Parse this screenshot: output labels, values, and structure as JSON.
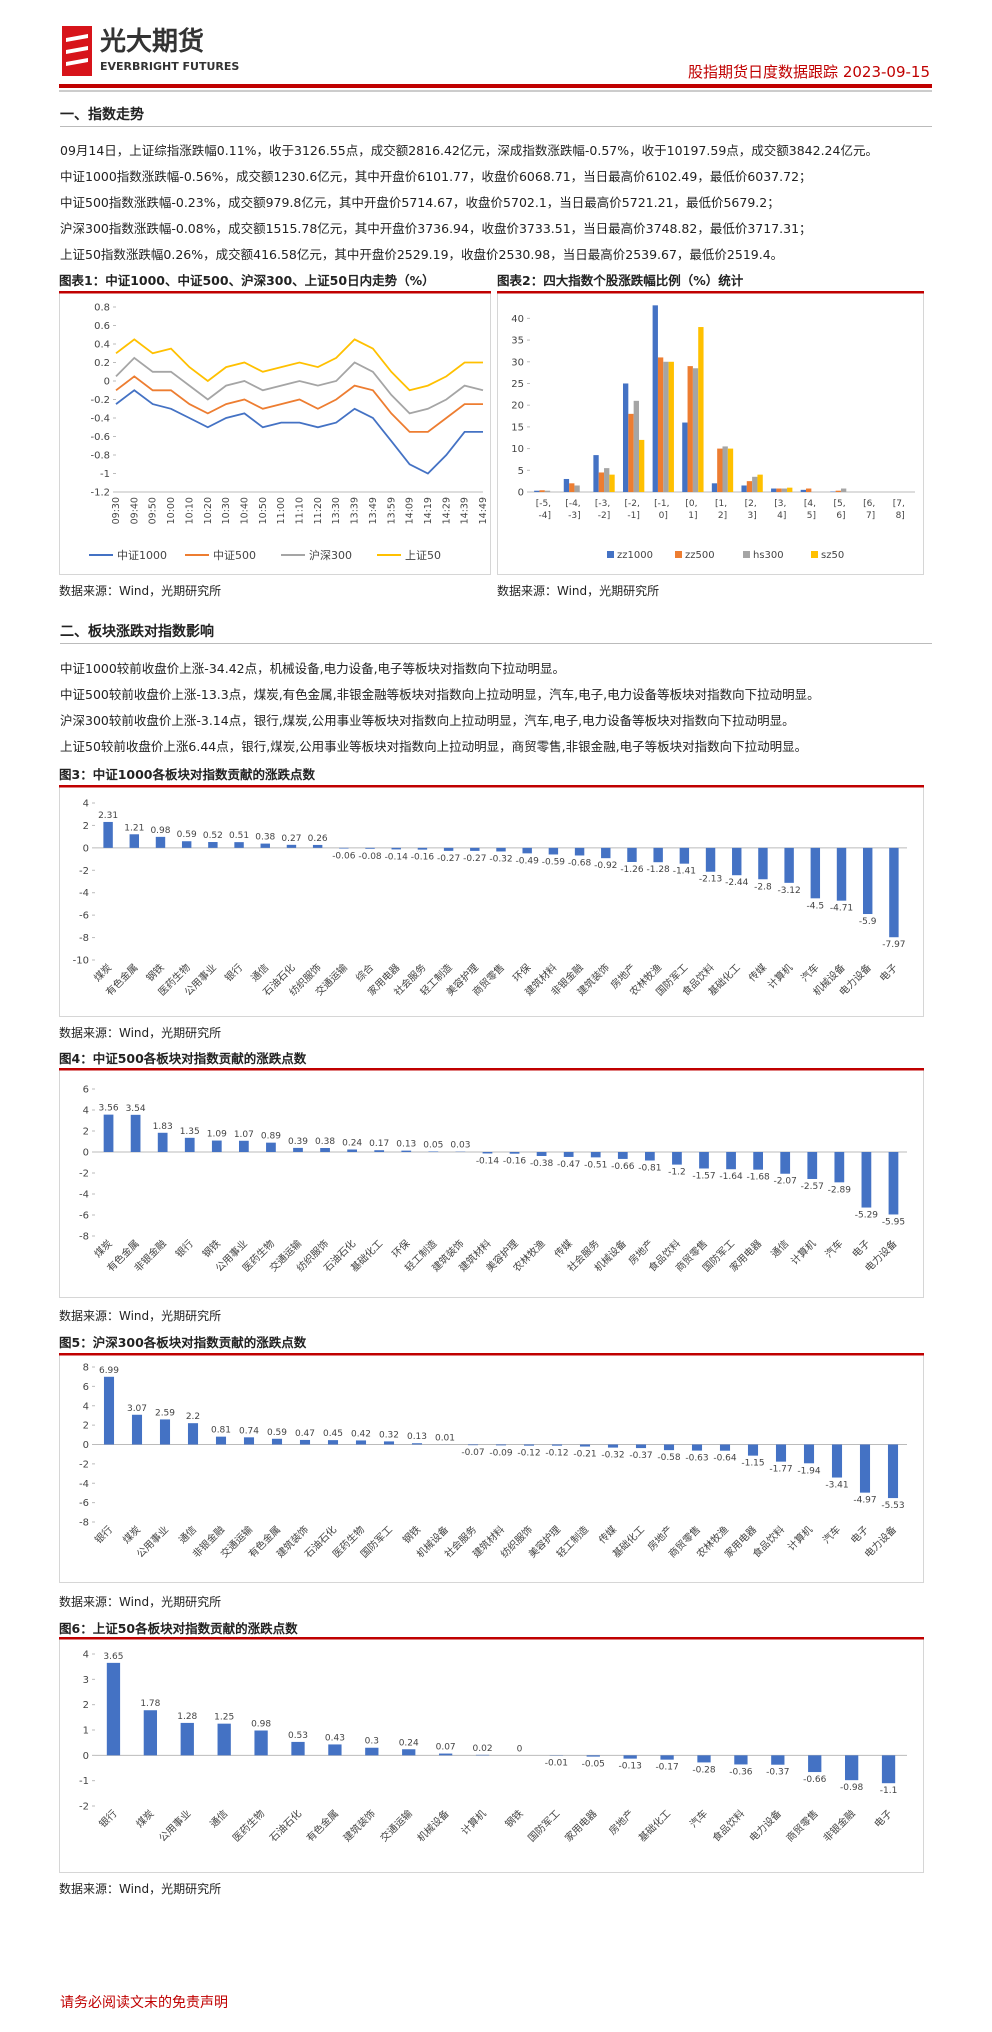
{
  "header": {
    "logo_cn": "光大期货",
    "logo_en": "EVERBRIGHT FUTURES",
    "title": "股指期货日度数据跟踪 2023-09-15"
  },
  "sections": [
    {
      "heading": "一、指数走势",
      "paragraphs": [
        "09月14日，上证综指涨跌幅0.11%，收于3126.55点，成交额2816.42亿元，深成指数涨跌幅-0.57%，收于10197.59点，成交额3842.24亿元。",
        "中证1000指数涨跌幅-0.56%，成交额1230.6亿元，其中开盘价6101.77，收盘价6068.71，当日最高价6102.49，最低价6037.72；",
        "中证500指数涨跌幅-0.23%，成交额979.8亿元，其中开盘价5714.67，收盘价5702.1，当日最高价5721.21，最低价5679.2；",
        "沪深300指数涨跌幅-0.08%，成交额1515.78亿元，其中开盘价3736.94，收盘价3733.51，当日最高价3748.82，最低价3717.31；",
        "上证50指数涨跌幅0.26%，成交额416.58亿元，其中开盘价2529.19，收盘价2530.98，当日最高价2539.67，最低价2519.4。"
      ]
    },
    {
      "heading": "二、板块涨跌对指数影响",
      "paragraphs": [
        "中证1000较前收盘价上涨-34.42点，机械设备,电力设备,电子等板块对指数向下拉动明显。",
        "中证500较前收盘价上涨-13.3点，煤炭,有色金属,非银金融等板块对指数向上拉动明显，汽车,电子,电力设备等板块对指数向下拉动明显。",
        "沪深300较前收盘价上涨-3.14点，银行,煤炭,公用事业等板块对指数向上拉动明显，汽车,电子,电力设备等板块对指数向下拉动明显。",
        "上证50较前收盘价上涨6.44点，银行,煤炭,公用事业等板块对指数向上拉动明显，商贸零售,非银金融,电子等板块对指数向下拉动明显。"
      ]
    }
  ],
  "chart_data": [
    {
      "type": "line",
      "title": "图表1：中证1000、中证500、沪深300、上证50日内走势（%）",
      "note": "数据来源：Wind，光期研究所",
      "categories": [
        "09:30",
        "09:40",
        "09:50",
        "10:00",
        "10:10",
        "10:20",
        "10:30",
        "10:40",
        "10:50",
        "11:00",
        "11:10",
        "11:20",
        "13:30",
        "13:39",
        "13:49",
        "13:59",
        "14:09",
        "14:19",
        "14:29",
        "14:39",
        "14:49"
      ],
      "series": [
        {
          "name": "中证1000",
          "color": "#4472c4",
          "values": [
            -0.25,
            -0.1,
            -0.25,
            -0.3,
            -0.4,
            -0.5,
            -0.4,
            -0.35,
            -0.5,
            -0.45,
            -0.45,
            -0.5,
            -0.45,
            -0.3,
            -0.4,
            -0.65,
            -0.9,
            -1.0,
            -0.8,
            -0.55,
            -0.55
          ]
        },
        {
          "name": "中证500",
          "color": "#ed7d31",
          "values": [
            -0.1,
            0.05,
            -0.1,
            -0.1,
            -0.25,
            -0.35,
            -0.25,
            -0.2,
            -0.3,
            -0.25,
            -0.2,
            -0.3,
            -0.2,
            -0.05,
            -0.1,
            -0.35,
            -0.55,
            -0.55,
            -0.4,
            -0.25,
            -0.25
          ]
        },
        {
          "name": "沪深300",
          "color": "#a5a5a5",
          "values": [
            0.05,
            0.25,
            0.1,
            0.1,
            -0.05,
            -0.2,
            -0.05,
            0.0,
            -0.1,
            -0.05,
            0.0,
            -0.05,
            0.0,
            0.2,
            0.1,
            -0.15,
            -0.35,
            -0.3,
            -0.2,
            -0.05,
            -0.1
          ]
        },
        {
          "name": "上证50",
          "color": "#ffc000",
          "values": [
            0.3,
            0.45,
            0.3,
            0.35,
            0.15,
            0.0,
            0.15,
            0.2,
            0.1,
            0.15,
            0.2,
            0.15,
            0.25,
            0.45,
            0.35,
            0.1,
            -0.1,
            -0.05,
            0.05,
            0.2,
            0.2
          ]
        }
      ],
      "ylim": [
        -1.2,
        0.8
      ],
      "yticks": [
        0.8,
        0.6,
        0.4,
        0.2,
        0,
        -0.2,
        -0.4,
        -0.6,
        -0.8,
        -1,
        -1.2
      ],
      "grid": false,
      "legend": "bottom"
    },
    {
      "type": "bar",
      "title": "图表2：四大指数个股涨跌幅比例（%）统计",
      "note": "数据来源：Wind，光期研究所",
      "categories": [
        "[-5, -4]",
        "[-4, -3]",
        "[-3, -2]",
        "[-2, -1]",
        "[-1, 0]",
        "[0, 1]",
        "[1, 2]",
        "[2, 3]",
        "[3, 4]",
        "[4, 5]",
        "[5, 6]",
        "[6, 7]",
        "[7, 8]"
      ],
      "series": [
        {
          "name": "zz1000",
          "color": "#4472c4",
          "values": [
            0.3,
            3,
            8.5,
            25,
            43,
            16,
            2,
            1.5,
            0.8,
            0.5,
            0.1,
            0,
            0
          ]
        },
        {
          "name": "zz500",
          "color": "#ed7d31",
          "values": [
            0.4,
            2,
            4.5,
            18,
            31,
            29,
            10,
            2.5,
            0.8,
            0.8,
            0.3,
            0,
            0
          ]
        },
        {
          "name": "hs300",
          "color": "#a5a5a5",
          "values": [
            0.3,
            1.5,
            5.5,
            21,
            30,
            28.5,
            10.5,
            3.5,
            0.8,
            0,
            0.8,
            0,
            0
          ]
        },
        {
          "name": "sz50",
          "color": "#ffc000",
          "values": [
            0,
            0,
            4,
            12,
            30,
            38,
            10,
            4,
            1,
            0,
            0,
            0,
            0
          ]
        }
      ],
      "ylim": [
        0,
        44
      ],
      "yticks": [
        0,
        5,
        10,
        15,
        20,
        25,
        30,
        35,
        40
      ],
      "grid": false,
      "legend": "bottom"
    },
    {
      "type": "bar",
      "title": "图3：中证1000各板块对指数贡献的涨跌点数",
      "note": "数据来源：Wind，光期研究所",
      "color": "#4472c4",
      "categories": [
        "煤炭",
        "有色金属",
        "钢铁",
        "医药生物",
        "公用事业",
        "银行",
        "通信",
        "石油石化",
        "纺织服饰",
        "交通运输",
        "综合",
        "家用电器",
        "社会服务",
        "轻工制造",
        "美容护理",
        "商贸零售",
        "环保",
        "建筑材料",
        "非银金融",
        "建筑装饰",
        "房地产",
        "农林牧渔",
        "国防军工",
        "食品饮料",
        "基础化工",
        "传媒",
        "计算机",
        "汽车",
        "机械设备",
        "电力设备",
        "电子"
      ],
      "values": [
        2.31,
        1.21,
        0.98,
        0.59,
        0.52,
        0.51,
        0.38,
        0.27,
        0.26,
        -0.06,
        -0.08,
        -0.14,
        -0.16,
        -0.27,
        -0.27,
        -0.32,
        -0.49,
        -0.59,
        -0.68,
        -0.92,
        -1.26,
        -1.28,
        -1.41,
        -2.13,
        -2.44,
        -2.8,
        -3.12,
        -4.5,
        -4.71,
        -5.9,
        -7.97
      ],
      "ylim": [
        -10,
        4
      ],
      "yticks": [
        -10,
        -8,
        -6,
        -4,
        -2,
        0,
        2,
        4
      ],
      "grid": false
    },
    {
      "type": "bar",
      "title": "图4：中证500各板块对指数贡献的涨跌点数",
      "note": "数据来源：Wind，光期研究所",
      "color": "#4472c4",
      "categories": [
        "煤炭",
        "有色金属",
        "非银金融",
        "银行",
        "钢铁",
        "公用事业",
        "医药生物",
        "交通运输",
        "纺织服饰",
        "石油石化",
        "基础化工",
        "环保",
        "轻工制造",
        "建筑装饰",
        "建筑材料",
        "美容护理",
        "农林牧渔",
        "传媒",
        "社会服务",
        "机械设备",
        "房地产",
        "食品饮料",
        "商贸零售",
        "国防军工",
        "家用电器",
        "通信",
        "计算机",
        "汽车",
        "电子",
        "电力设备"
      ],
      "values": [
        3.56,
        3.54,
        1.83,
        1.35,
        1.09,
        1.07,
        0.89,
        0.39,
        0.38,
        0.24,
        0.17,
        0.13,
        0.05,
        0.03,
        -0.14,
        -0.16,
        -0.38,
        -0.47,
        -0.51,
        -0.66,
        -0.81,
        -1.2,
        -1.57,
        -1.64,
        -1.68,
        -2.07,
        -2.57,
        -2.89,
        -5.29,
        -5.95
      ],
      "ylim": [
        -8,
        6
      ],
      "yticks": [
        -8,
        -6,
        -4,
        -2,
        0,
        2,
        4,
        6
      ],
      "grid": false
    },
    {
      "type": "bar",
      "title": "图5：沪深300各板块对指数贡献的涨跌点数",
      "note": "数据来源：Wind，光期研究所",
      "color": "#4472c4",
      "categories": [
        "银行",
        "煤炭",
        "公用事业",
        "通信",
        "非银金融",
        "交通运输",
        "有色金属",
        "建筑装饰",
        "石油石化",
        "医药生物",
        "国防军工",
        "钢铁",
        "机械设备",
        "社会服务",
        "建筑材料",
        "纺织服饰",
        "美容护理",
        "轻工制造",
        "传媒",
        "基础化工",
        "房地产",
        "商贸零售",
        "农林牧渔",
        "家用电器",
        "食品饮料",
        "计算机",
        "汽车",
        "电子",
        "电力设备"
      ],
      "values": [
        6.99,
        3.07,
        2.59,
        2.2,
        0.81,
        0.74,
        0.59,
        0.47,
        0.45,
        0.42,
        0.32,
        0.13,
        0.01,
        -0.07,
        -0.09,
        -0.12,
        -0.12,
        -0.21,
        -0.32,
        -0.37,
        -0.58,
        -0.63,
        -0.64,
        -1.15,
        -1.77,
        -1.94,
        -3.41,
        -4.97,
        -5.53
      ],
      "ylim": [
        -8,
        8
      ],
      "yticks": [
        -8,
        -6,
        -4,
        -2,
        0,
        2,
        4,
        6,
        8
      ],
      "grid": false
    },
    {
      "type": "bar",
      "title": "图6：上证50各板块对指数贡献的涨跌点数",
      "note": "数据来源：Wind，光期研究所",
      "color": "#4472c4",
      "categories": [
        "银行",
        "煤炭",
        "公用事业",
        "通信",
        "医药生物",
        "石油石化",
        "有色金属",
        "建筑装饰",
        "交通运输",
        "机械设备",
        "计算机",
        "钢铁",
        "国防军工",
        "家用电器",
        "房地产",
        "基础化工",
        "汽车",
        "食品饮料",
        "电力设备",
        "商贸零售",
        "非银金融",
        "电子"
      ],
      "values": [
        3.65,
        1.78,
        1.28,
        1.25,
        0.98,
        0.53,
        0.43,
        0.3,
        0.24,
        0.07,
        0.02,
        0,
        -0.01,
        -0.05,
        -0.13,
        -0.17,
        -0.28,
        -0.36,
        -0.37,
        -0.66,
        -0.98,
        -1.1
      ],
      "ylim": [
        -2,
        4
      ],
      "yticks": [
        -2,
        -1,
        0,
        1,
        2,
        3,
        4
      ],
      "grid": false
    }
  ],
  "footer": "请务必阅读文末的免责声明"
}
